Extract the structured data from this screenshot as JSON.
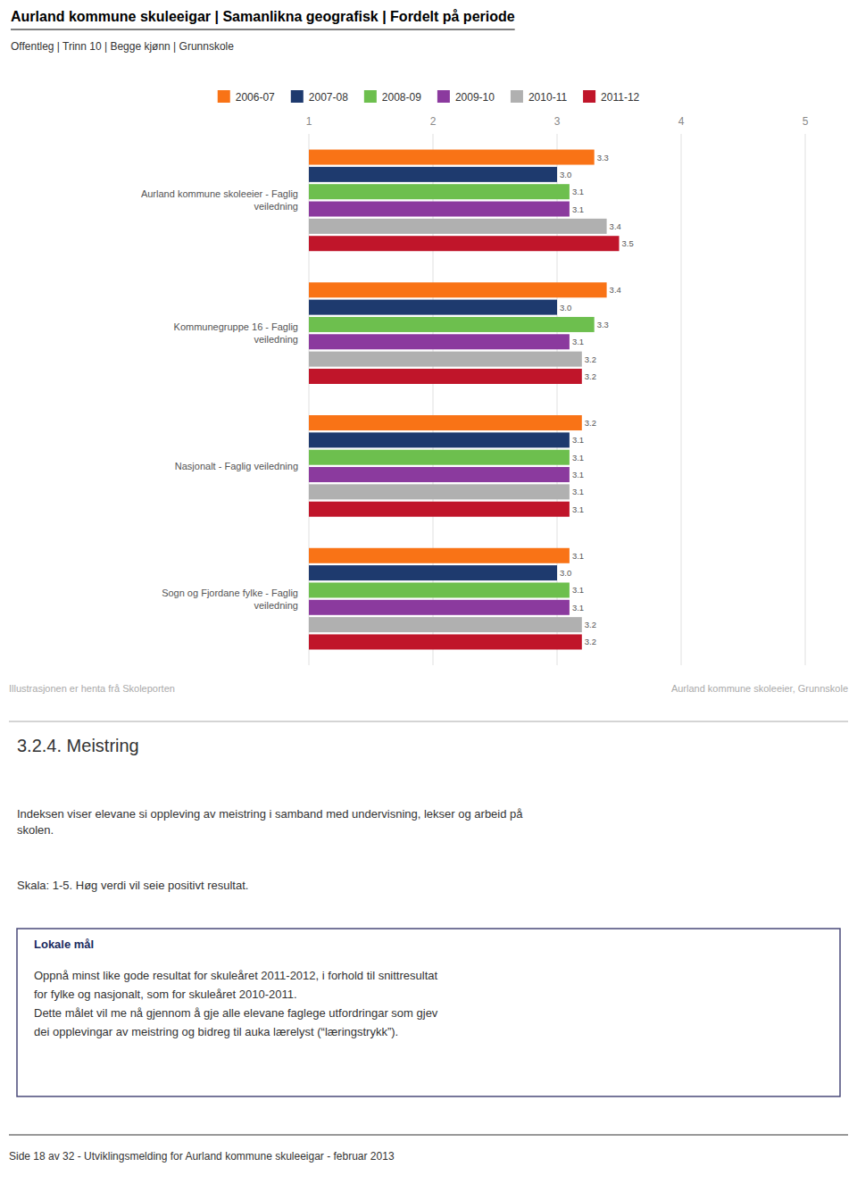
{
  "chart_data": {
    "type": "bar",
    "orientation": "horizontal",
    "title": "Aurland kommune skuleeigar | Samanlikna geografisk | Fordelt på periode",
    "subtitle": "Offentleg | Trinn 10 | Begge kjønn | Grunnskole",
    "categories": [
      "Aurland kommune skoleeier - Faglig\nveiledning",
      "Kommunegruppe 16 - Faglig\nveiledning",
      "Nasjonalt - Faglig veiledning",
      "Sogn og Fjordane fylke - Faglig\nveiledning"
    ],
    "series": [
      {
        "name": "2006-07",
        "color": "#f97316",
        "values": [
          3.3,
          3.4,
          3.2,
          3.1
        ],
        "value_labels": [
          "3.3",
          "3.4",
          "3.2",
          "3.1"
        ]
      },
      {
        "name": "2007-08",
        "color": "#1e3a6e",
        "values": [
          3.0,
          3.0,
          3.1,
          3.0
        ],
        "value_labels": [
          "3.0",
          "3.0",
          "3.1",
          "3.0"
        ]
      },
      {
        "name": "2008-09",
        "color": "#6dbf4e",
        "values": [
          3.1,
          3.3,
          3.1,
          3.1
        ],
        "value_labels": [
          "3.1",
          "3.3",
          "3.1",
          "3.1"
        ]
      },
      {
        "name": "2009-10",
        "color": "#8b3a9e",
        "values": [
          3.1,
          3.1,
          3.1,
          3.1
        ],
        "value_labels": [
          "3.1",
          "3.1",
          "3.1",
          "3.1"
        ]
      },
      {
        "name": "2010-11",
        "color": "#b0b0b0",
        "values": [
          3.4,
          3.2,
          3.1,
          3.2
        ],
        "value_labels": [
          "3.4",
          "3.2",
          "3.1",
          "3.2"
        ]
      },
      {
        "name": "2011-12",
        "color": "#c0152a",
        "values": [
          3.5,
          3.2,
          3.1,
          3.2
        ],
        "value_labels": [
          "3.5",
          "3.2",
          "3.1",
          "3.2"
        ]
      }
    ],
    "xlim": [
      1,
      5
    ],
    "xticks": [
      1,
      2,
      3,
      4,
      5
    ],
    "grid": true,
    "data_labels": true,
    "annotations": [
      "Illustrasjonen er henta frå Skoleporten",
      "Aurland kommune skoleeier, Grunnskole"
    ]
  },
  "section_title": "3.2.4.  Meistring",
  "section_text1": "Indeksen viser elevane si oppleving av meistring i samband med undervisning, lekser og arbeid på\nskolen.",
  "section_text2": "Skala: 1-5. Høg verdi vil seie positivt resultat.",
  "box_title": "Lokale mål",
  "box_text": "Oppnå minst like gode resultat for skuleåret 2011-2012, i forhold til snittresultat\nfor fylke og nasjonalt, som for skuleåret 2010-2011.\nDette målet vil me nå gjennom å gje alle elevane faglege utfordringar som gjev\ndei opplevingar av meistring og bidreg til auka lærelyst (“læringstrykk”).",
  "page_footer": "Side 18 av 32 - Utviklingsmelding for Aurland kommune skuleeigar -  februar 2013"
}
